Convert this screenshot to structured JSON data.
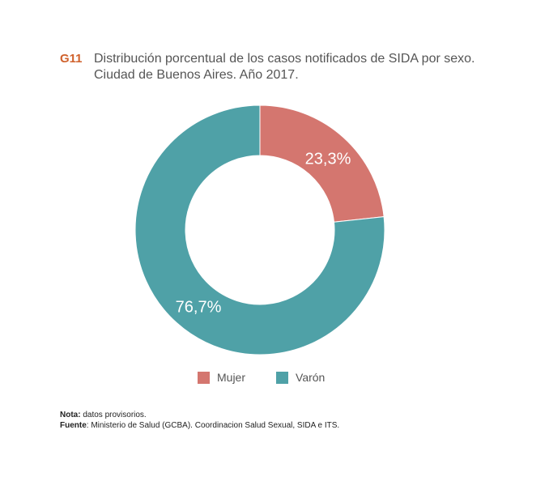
{
  "header": {
    "figure_id": "G11",
    "title_line1": "Distribución porcentual de los casos notificados de SIDA por sexo.",
    "title_line2": "Ciudad de Buenos Aires. Año 2017."
  },
  "chart_data": {
    "type": "pie",
    "variant": "donut",
    "title": "Distribución porcentual de los casos notificados de SIDA por sexo. Ciudad de Buenos Aires. Año 2017.",
    "categories": [
      "Mujer",
      "Varón"
    ],
    "values": [
      23.3,
      76.7
    ],
    "labels": [
      "23,3%",
      "76,7%"
    ],
    "colors": [
      "#d4766f",
      "#4fa1a7"
    ],
    "legend_position": "bottom"
  },
  "legend": {
    "items": [
      {
        "label": "Mujer",
        "color": "#d4766f"
      },
      {
        "label": "Varón",
        "color": "#4fa1a7"
      }
    ]
  },
  "notes": {
    "nota_label": "Nota:",
    "nota_text": " datos provisorios.",
    "fuente_label": "Fuente",
    "fuente_text": ": Ministerio de Salud (GCBA). Coordinacion Salud Sexual, SIDA e ITS."
  }
}
